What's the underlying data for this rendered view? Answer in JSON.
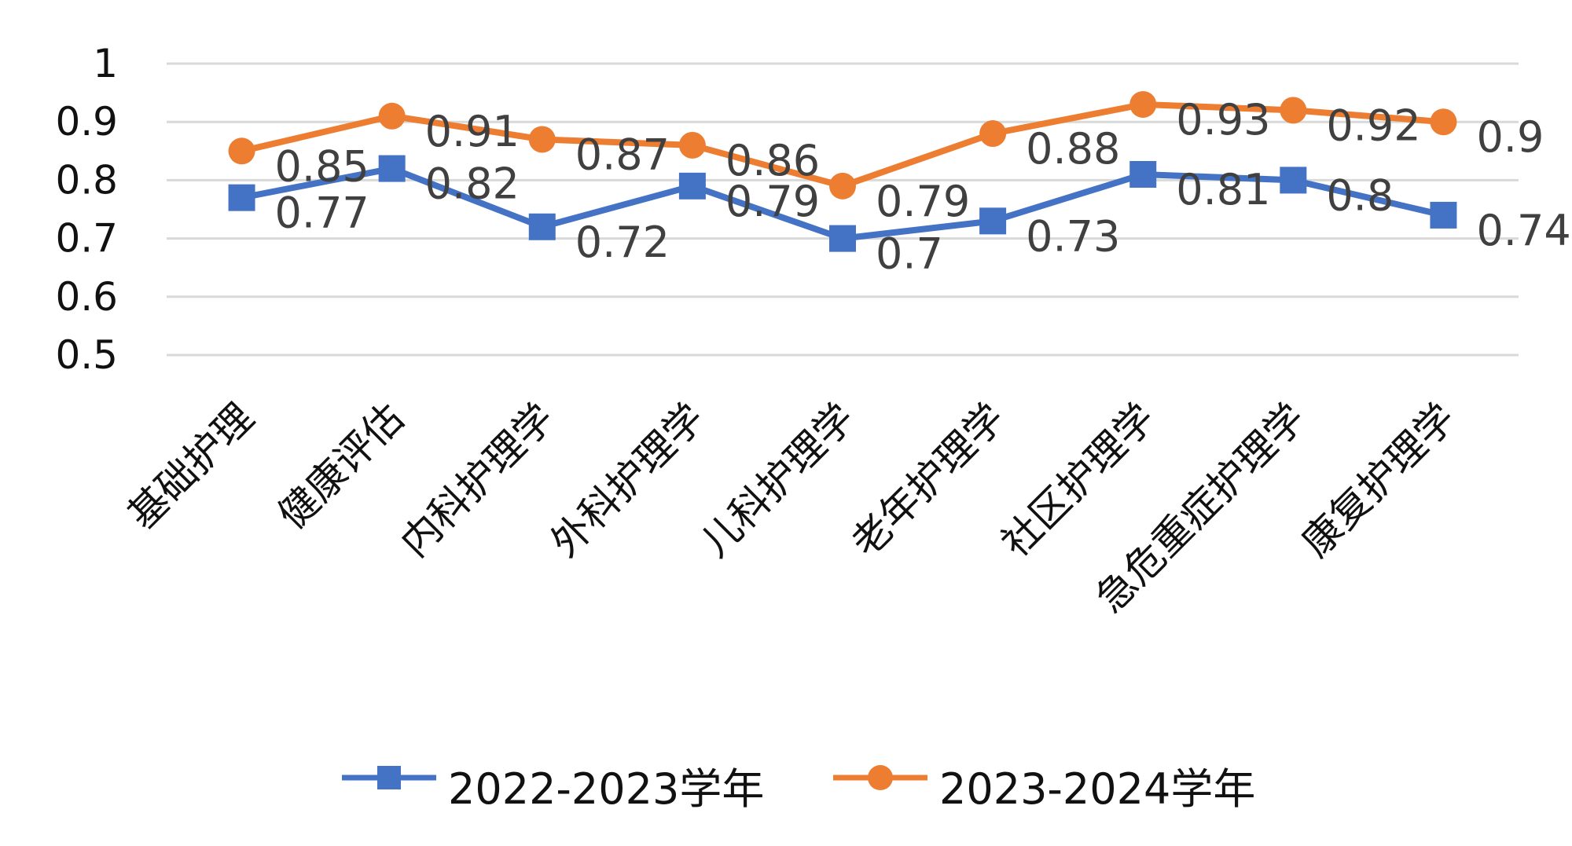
{
  "chart_data": {
    "type": "line",
    "categories": [
      "基础护理",
      "健康评估",
      "内科护理学",
      "外科护理学",
      "儿科护理学",
      "老年护理学",
      "社区护理学",
      "急危重症护理学",
      "康复护理学"
    ],
    "series": [
      {
        "name": "2022-2023学年",
        "values": [
          0.77,
          0.82,
          0.72,
          0.79,
          0.7,
          0.73,
          0.81,
          0.8,
          0.74
        ],
        "color": "#4472C4",
        "marker": "square"
      },
      {
        "name": "2023-2024学年",
        "values": [
          0.85,
          0.91,
          0.87,
          0.86,
          0.79,
          0.88,
          0.93,
          0.92,
          0.9
        ],
        "color": "#ED7D31",
        "marker": "circle"
      }
    ],
    "yticks": [
      "0.5",
      "0.6",
      "0.7",
      "0.8",
      "0.9",
      "1"
    ],
    "ylim": [
      0.5,
      1
    ],
    "grid": true,
    "gridline_color": "#d9d9d9",
    "data_label_color": "#404040",
    "legend_position": "bottom"
  }
}
